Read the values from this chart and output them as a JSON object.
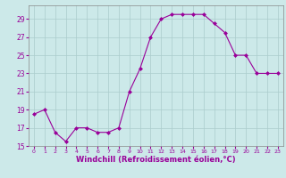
{
  "hours": [
    0,
    1,
    2,
    3,
    4,
    5,
    6,
    7,
    8,
    9,
    10,
    11,
    12,
    13,
    14,
    15,
    16,
    17,
    18,
    19,
    20,
    21,
    22,
    23
  ],
  "windchill": [
    18.5,
    19.0,
    16.5,
    15.5,
    17.0,
    17.0,
    16.5,
    16.5,
    17.0,
    21.0,
    23.5,
    27.0,
    29.0,
    29.5,
    29.5,
    29.5,
    29.5,
    28.5,
    27.5,
    25.0,
    25.0,
    23.0,
    23.0,
    23.0
  ],
  "line_color": "#990099",
  "marker": "D",
  "marker_size": 2,
  "bg_color": "#cce9e9",
  "grid_color": "#aacccc",
  "xlabel": "Windchill (Refroidissement éolien,°C)",
  "xlabel_fontsize": 6,
  "tick_color": "#990099",
  "tick_label_color": "#990099",
  "xlabel_color": "#990099",
  "ylim": [
    15,
    30.5
  ],
  "yticks": [
    15,
    17,
    19,
    21,
    23,
    25,
    27,
    29
  ],
  "xlim": [
    -0.5,
    23.5
  ],
  "xticks": [
    0,
    1,
    2,
    3,
    4,
    5,
    6,
    7,
    8,
    9,
    10,
    11,
    12,
    13,
    14,
    15,
    16,
    17,
    18,
    19,
    20,
    21,
    22,
    23
  ]
}
